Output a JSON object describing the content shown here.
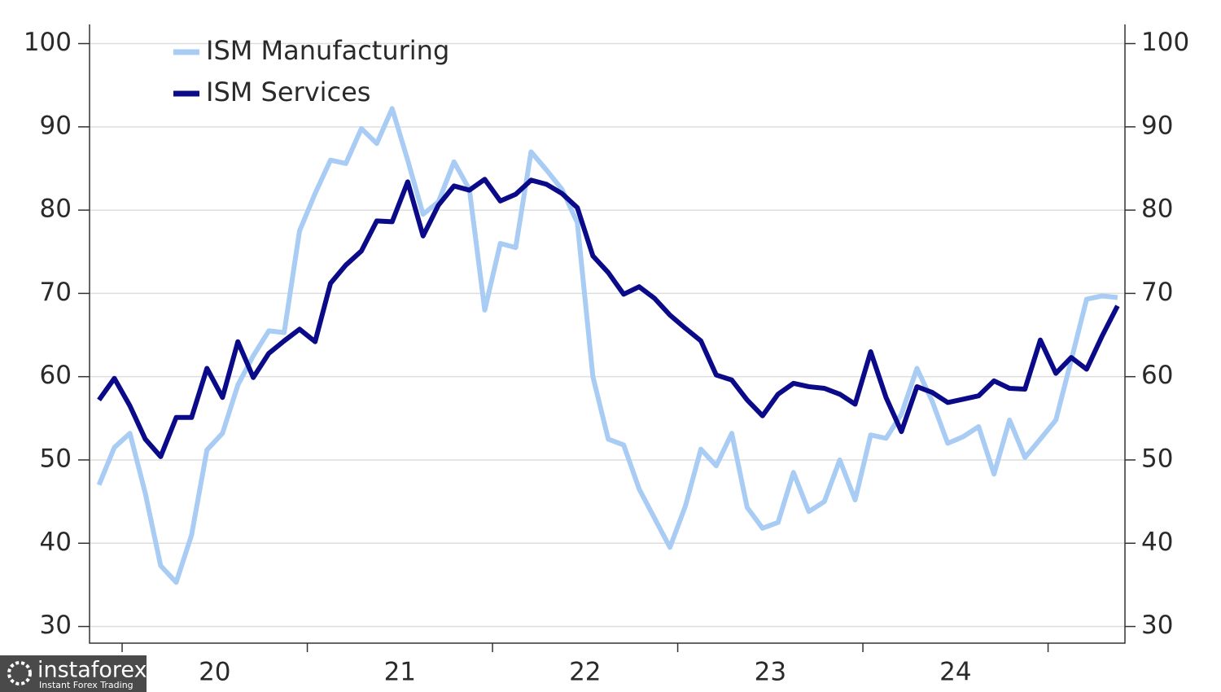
{
  "chart_data": {
    "type": "line",
    "x": [
      2019.875,
      2019.958,
      2020.042,
      2020.125,
      2020.208,
      2020.292,
      2020.375,
      2020.458,
      2020.542,
      2020.625,
      2020.708,
      2020.792,
      2020.875,
      2020.958,
      2021.042,
      2021.125,
      2021.208,
      2021.292,
      2021.375,
      2021.458,
      2021.542,
      2021.625,
      2021.708,
      2021.792,
      2021.875,
      2021.958,
      2022.042,
      2022.125,
      2022.208,
      2022.292,
      2022.375,
      2022.458,
      2022.542,
      2022.625,
      2022.708,
      2022.792,
      2022.875,
      2022.958,
      2023.042,
      2023.125,
      2023.208,
      2023.292,
      2023.375,
      2023.458,
      2023.542,
      2023.625,
      2023.708,
      2023.792,
      2023.875,
      2023.958,
      2024.042,
      2024.125,
      2024.208,
      2024.292,
      2024.375,
      2024.458,
      2024.542,
      2024.625,
      2024.708,
      2024.792,
      2024.875,
      2024.958,
      2025.042,
      2025.125,
      2025.208,
      2025.292,
      2025.375
    ],
    "series": [
      {
        "name": "ISM Manufacturing",
        "color": "#a8ccf4",
        "values": [
          47,
          51.5,
          53.2,
          46,
          37.3,
          35.3,
          41,
          51.2,
          53.2,
          59,
          62.5,
          65.5,
          65.3,
          77.5,
          82,
          86,
          85.6,
          89.8,
          88,
          92.2,
          86,
          79.5,
          81,
          85.8,
          82.5,
          68,
          76,
          75.5,
          87,
          84.8,
          82.5,
          78.5,
          60,
          52.5,
          51.8,
          46.5,
          43,
          39.5,
          44.5,
          51.3,
          49.3,
          53.2,
          44.3,
          41.8,
          42.5,
          48.5,
          43.8,
          45,
          50,
          45.2,
          53,
          52.6,
          55.5,
          61,
          57,
          52,
          52.8,
          54,
          48.3,
          54.8,
          50.3,
          52.5,
          54.8,
          62,
          69.3,
          69.7,
          69.5
        ]
      },
      {
        "name": "ISM Services",
        "color": "#0b0b8a",
        "values": [
          57.2,
          59.8,
          56.5,
          52.5,
          50.4,
          55.1,
          55.1,
          61,
          57.5,
          64.2,
          59.9,
          62.8,
          64.3,
          65.7,
          64.2,
          71.2,
          73.4,
          75.1,
          78.7,
          78.6,
          83.4,
          76.9,
          80.6,
          82.9,
          82.4,
          83.7,
          81.1,
          81.9,
          83.6,
          83.1,
          82,
          80.3,
          74.5,
          72.5,
          69.9,
          70.8,
          69.4,
          67.4,
          65.8,
          64.3,
          60.2,
          59.6,
          57.2,
          55.3,
          57.9,
          59.2,
          58.8,
          58.6,
          57.9,
          56.7,
          63,
          57.5,
          53.4,
          58.8,
          58.1,
          56.9,
          57.3,
          57.7,
          59.5,
          58.6,
          58.5,
          64.4,
          60.4,
          62.3,
          60.9,
          64.9,
          68.5
        ]
      }
    ],
    "xlim": [
      2019.824,
      2025.415
    ],
    "xticks": [
      2020,
      2021,
      2022,
      2023,
      2024,
      2025
    ],
    "xtick_labels": [
      {
        "value": 2020.5,
        "label": "20"
      },
      {
        "value": 2021.5,
        "label": "21"
      },
      {
        "value": 2022.5,
        "label": "22"
      },
      {
        "value": 2023.5,
        "label": "23"
      },
      {
        "value": 2024.5,
        "label": "24"
      }
    ],
    "ylim": [
      28,
      102.3
    ],
    "yticks": [
      30,
      40,
      50,
      60,
      70,
      80,
      90,
      100
    ],
    "y2lim": [
      28,
      102.3
    ],
    "y2ticks": [
      30,
      40,
      50,
      60,
      70,
      80,
      90,
      100
    ],
    "grid": true,
    "legend": "top-left"
  },
  "watermark": {
    "name": "instaforex",
    "tagline": "Instant Forex Trading"
  }
}
